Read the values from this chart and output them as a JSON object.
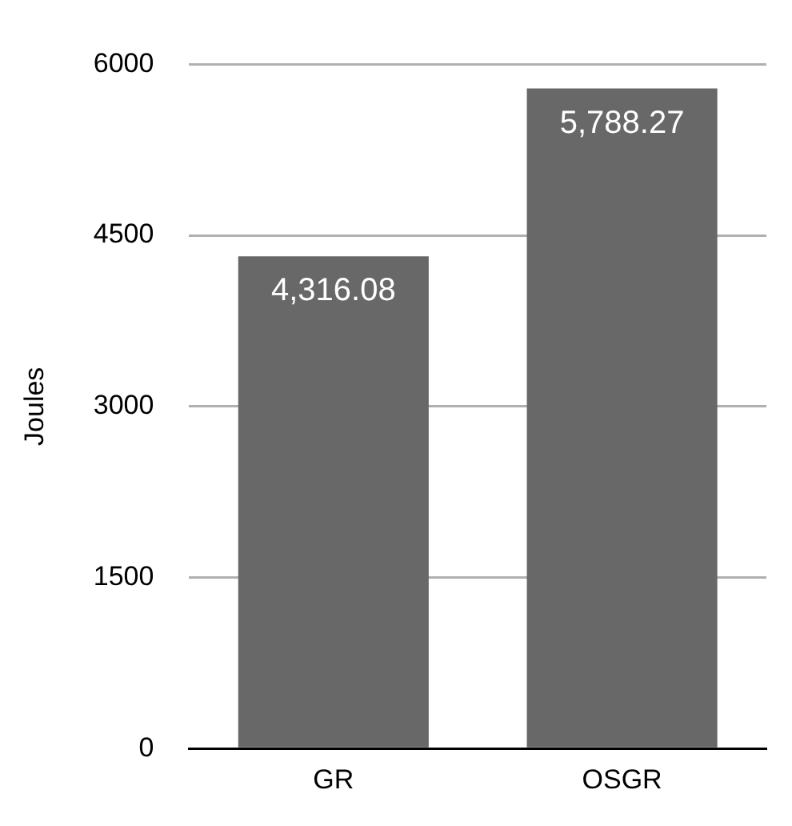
{
  "chart_data": {
    "type": "bar",
    "ylabel": "Joules",
    "categories": [
      "GR",
      "OSGR"
    ],
    "values": [
      4316.08,
      5788.27
    ],
    "value_labels": [
      "4,316.08",
      "5,788.27"
    ],
    "color": "#686868",
    "ylim": [
      0,
      6000
    ],
    "yticks": [
      0,
      1500,
      3000,
      4500,
      6000
    ],
    "grid": "y",
    "legend": false
  }
}
